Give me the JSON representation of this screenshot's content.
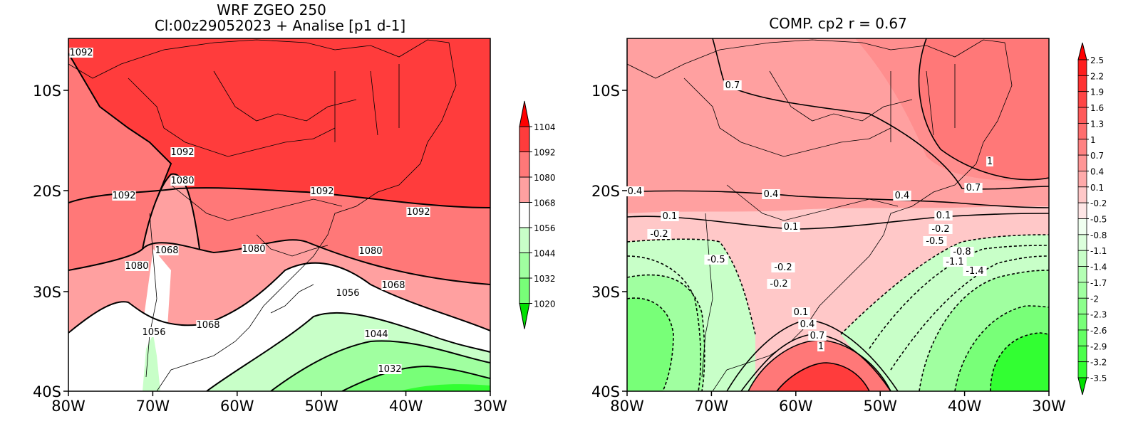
{
  "left_panel": {
    "title_line1": "WRF ZGEO 250",
    "title_line2": "Cl:00z29052023 + Analise  [p1 d-1]",
    "colorbar_labels": [
      "1104",
      "1092",
      "1080",
      "1068",
      "1056",
      "1044",
      "1032",
      "1020"
    ],
    "contour_labels": [
      "1092",
      "1092",
      "1080",
      "1092",
      "1092",
      "1092",
      "1068",
      "1080",
      "1080",
      "1080",
      "1068",
      "1056",
      "1068",
      "1056",
      "1044",
      "1032"
    ]
  },
  "right_panel": {
    "title": "COMP. cp2  r =  0.67",
    "colorbar_labels": [
      "2.5",
      "2.2",
      "1.9",
      "1.6",
      "1.3",
      "1",
      "0.7",
      "0.4",
      "0.1",
      "-0.2",
      "-0.5",
      "-0.8",
      "-1.1",
      "-1.4",
      "-1.7",
      "-2",
      "-2.3",
      "-2.6",
      "-2.9",
      "-3.2",
      "-3.5"
    ],
    "contour_labels": [
      "0.7",
      "1",
      "0.7",
      "0.4",
      "0.4",
      "0.4",
      "0.1",
      "0.1",
      "0.1",
      "-0.2",
      "-0.2",
      "-0.5",
      "-0.5",
      "-0.8",
      "-1.1",
      "-1.4",
      "-0.2",
      "-0.2",
      "0.1",
      "0.4",
      "0.7",
      "1"
    ]
  },
  "axes": {
    "x_ticks": [
      "80W",
      "70W",
      "60W",
      "50W",
      "40W",
      "30W"
    ],
    "y_ticks": [
      "10S",
      "20S",
      "30S",
      "40S"
    ]
  },
  "colors": {
    "red_dark": "#ff3c3c",
    "red_mid": "#ff7878",
    "red_light": "#ffa0a0",
    "pink_pale": "#ffc8c8",
    "green_pale": "#c8ffc8",
    "green_light": "#a0ffa0",
    "green_mid": "#78ff78",
    "green_bright": "#32ff32"
  }
}
